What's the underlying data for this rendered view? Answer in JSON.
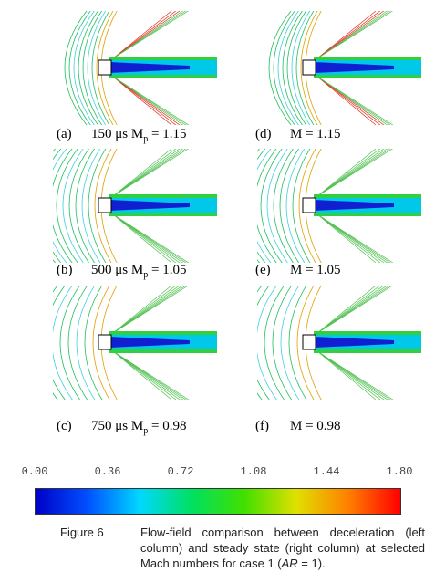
{
  "panels": [
    {
      "label": "(a)",
      "time": "150 μs",
      "symbol": "M",
      "subscript": "p",
      "equals": "= 1.15"
    },
    {
      "label": "(d)",
      "text": "M = 1.15"
    },
    {
      "label": "(b)",
      "time": "500 μs",
      "symbol": "M",
      "subscript": "p",
      "equals": "= 1.05"
    },
    {
      "label": "(e)",
      "text": "M = 1.05"
    },
    {
      "label": "(c)",
      "time": "750 μs",
      "symbol": "M",
      "subscript": "p",
      "equals": "= 0.98"
    },
    {
      "label": "(f)",
      "text": "M = 0.98"
    }
  ],
  "colorbar": {
    "ticks": [
      "0.00",
      "0.36",
      "0.72",
      "1.08",
      "1.44",
      "1.80"
    ]
  },
  "caption": {
    "label": "Figure 6",
    "text_before": "Flow-field comparison between deceleration (left column) and steady state (right column) at selected Mach numbers for case 1 (",
    "italic": "AR",
    "text_after": " = 1)."
  }
}
